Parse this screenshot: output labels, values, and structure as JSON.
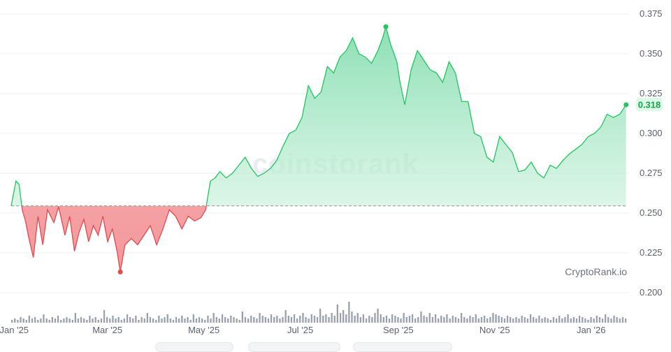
{
  "watermark": "coinstorank",
  "brand": "CryptoRank.io",
  "colors": {
    "up_line": "#22c55e",
    "up_fill": "#8fe3b7",
    "down_line": "#e5484d",
    "down_fill": "#f6a8aa",
    "baseline": "#86c9a0",
    "grid": "#eceff3",
    "volume": "#9aa1ad"
  },
  "chart_data": {
    "type": "area",
    "baseline": 0.2545,
    "ylim": [
      0.18,
      0.38
    ],
    "y_ticks": [
      "0.375",
      "0.350",
      "0.325",
      "0.300",
      "0.275",
      "0.250",
      "0.225",
      "0.200"
    ],
    "y_tick_values": [
      0.375,
      0.35,
      0.325,
      0.3,
      0.275,
      0.25,
      0.225,
      0.2
    ],
    "x_ticks": [
      "Jan '25",
      "Mar '25",
      "May '25",
      "Jul '25",
      "Sep '25",
      "Nov '25",
      "Jan '26"
    ],
    "x_tick_dates": [
      "2025-01-01",
      "2025-03-01",
      "2025-05-01",
      "2025-07-01",
      "2025-09-01",
      "2025-11-01",
      "2026-01-01"
    ],
    "x_range": [
      "2024-12-31",
      "2026-01-25"
    ],
    "last_value": "0.318",
    "max_point": {
      "date": "2025-08-25",
      "value": 0.367
    },
    "min_point": {
      "date": "2025-03-10",
      "value": 0.213
    },
    "series": [
      {
        "x": [
          "2024-12-31",
          "2025-01-03",
          "2025-01-05",
          "2025-01-07",
          "2025-01-09",
          "2025-01-11",
          "2025-01-14",
          "2025-01-17",
          "2025-01-20",
          "2025-01-23",
          "2025-01-27",
          "2025-01-30",
          "2025-02-03",
          "2025-02-06",
          "2025-02-09",
          "2025-02-12",
          "2025-02-15",
          "2025-02-18",
          "2025-02-21",
          "2025-02-24",
          "2025-02-27",
          "2025-03-02",
          "2025-03-05",
          "2025-03-08",
          "2025-03-10",
          "2025-03-13",
          "2025-03-17",
          "2025-03-21",
          "2025-03-25",
          "2025-03-29",
          "2025-04-02",
          "2025-04-06",
          "2025-04-10",
          "2025-04-14",
          "2025-04-18",
          "2025-04-22",
          "2025-04-26",
          "2025-04-30",
          "2025-05-03",
          "2025-05-06",
          "2025-05-09",
          "2025-05-12",
          "2025-05-16",
          "2025-05-20",
          "2025-05-24",
          "2025-05-28",
          "2025-06-01",
          "2025-06-05",
          "2025-06-09",
          "2025-06-13",
          "2025-06-17",
          "2025-06-21",
          "2025-06-25",
          "2025-06-29",
          "2025-07-03",
          "2025-07-07",
          "2025-07-11",
          "2025-07-15",
          "2025-07-19",
          "2025-07-23",
          "2025-07-27",
          "2025-07-31",
          "2025-08-04",
          "2025-08-08",
          "2025-08-12",
          "2025-08-16",
          "2025-08-20",
          "2025-08-23",
          "2025-08-25",
          "2025-08-28",
          "2025-09-01",
          "2025-09-03",
          "2025-09-06",
          "2025-09-10",
          "2025-09-14",
          "2025-09-18",
          "2025-09-22",
          "2025-09-26",
          "2025-09-30",
          "2025-10-04",
          "2025-10-08",
          "2025-10-12",
          "2025-10-16",
          "2025-10-20",
          "2025-10-24",
          "2025-10-28",
          "2025-11-01",
          "2025-11-05",
          "2025-11-09",
          "2025-11-13",
          "2025-11-17",
          "2025-11-21",
          "2025-11-25",
          "2025-11-29",
          "2025-12-03",
          "2025-12-07",
          "2025-12-11",
          "2025-12-15",
          "2025-12-19",
          "2025-12-23",
          "2025-12-27",
          "2025-12-31",
          "2026-01-04",
          "2026-01-08",
          "2026-01-12",
          "2026-01-16",
          "2026-01-20",
          "2026-01-24"
        ],
        "values": [
          0.2545,
          0.27,
          0.268,
          0.252,
          0.245,
          0.235,
          0.222,
          0.248,
          0.23,
          0.252,
          0.244,
          0.254,
          0.236,
          0.248,
          0.226,
          0.238,
          0.246,
          0.232,
          0.242,
          0.236,
          0.248,
          0.232,
          0.24,
          0.226,
          0.213,
          0.23,
          0.234,
          0.23,
          0.236,
          0.242,
          0.23,
          0.24,
          0.252,
          0.248,
          0.24,
          0.248,
          0.245,
          0.247,
          0.252,
          0.27,
          0.272,
          0.276,
          0.272,
          0.275,
          0.28,
          0.285,
          0.278,
          0.273,
          0.275,
          0.278,
          0.283,
          0.292,
          0.3,
          0.302,
          0.31,
          0.33,
          0.322,
          0.326,
          0.342,
          0.338,
          0.348,
          0.352,
          0.36,
          0.35,
          0.348,
          0.344,
          0.352,
          0.36,
          0.367,
          0.356,
          0.345,
          0.332,
          0.318,
          0.34,
          0.352,
          0.346,
          0.34,
          0.338,
          0.332,
          0.345,
          0.338,
          0.32,
          0.32,
          0.3,
          0.298,
          0.285,
          0.282,
          0.298,
          0.293,
          0.288,
          0.276,
          0.277,
          0.282,
          0.275,
          0.272,
          0.28,
          0.278,
          0.283,
          0.287,
          0.29,
          0.293,
          0.298,
          0.3,
          0.304,
          0.312,
          0.31,
          0.312,
          0.318
        ]
      }
    ],
    "volume": {
      "x_range": [
        "2024-12-31",
        "2026-01-25"
      ],
      "values": [
        1,
        2,
        1,
        3,
        2,
        1,
        4,
        2,
        3,
        1,
        2,
        5,
        2,
        1,
        3,
        2,
        4,
        1,
        2,
        3,
        2,
        1,
        6,
        2,
        3,
        2,
        1,
        4,
        2,
        3,
        1,
        2,
        8,
        3,
        2,
        4,
        2,
        3,
        1,
        2,
        5,
        3,
        2,
        4,
        1,
        3,
        2,
        6,
        3,
        2,
        1,
        4,
        2,
        3,
        5,
        2,
        1,
        3,
        2,
        4,
        2,
        3,
        1,
        5,
        2,
        3,
        2,
        1,
        4,
        2,
        6,
        3,
        2,
        5,
        3,
        2,
        4,
        3,
        2,
        1,
        7,
        3,
        2,
        4,
        3,
        2,
        6,
        4,
        3,
        2,
        5,
        3,
        4,
        2,
        3,
        8,
        4,
        3,
        5,
        2,
        4,
        6,
        3,
        2,
        5,
        4,
        3,
        9,
        4,
        5,
        3,
        6,
        4,
        12,
        6,
        8,
        5,
        14,
        7,
        4,
        6,
        3,
        5,
        2,
        4,
        3,
        6,
        9,
        5,
        3,
        4,
        2,
        5,
        4,
        3,
        2,
        6,
        3,
        4,
        5,
        2,
        3,
        7,
        4,
        3,
        6,
        3,
        5,
        2,
        4,
        3,
        5,
        2,
        4,
        3,
        2,
        6,
        3,
        2,
        4,
        3,
        5,
        2,
        3,
        4,
        2,
        3,
        6,
        5,
        4,
        3,
        2,
        4,
        3,
        2,
        3,
        2,
        4,
        3,
        2,
        5,
        3,
        2,
        4,
        2,
        3,
        2,
        1,
        3,
        2,
        4,
        2,
        3,
        5,
        2,
        3,
        2,
        4,
        3,
        2,
        1,
        3,
        2,
        4,
        3,
        2,
        5,
        3,
        2,
        4,
        3,
        2,
        3,
        2
      ]
    }
  }
}
